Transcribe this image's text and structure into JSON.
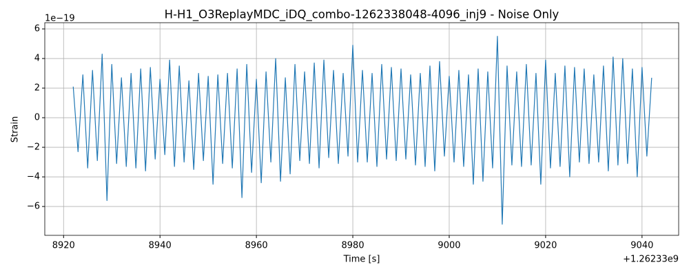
{
  "chart_data": {
    "type": "line",
    "title": "H-H1_O3ReplayMDC_iDQ_combo-1262338048-4096_inj9 - Noise Only",
    "xlabel": "Time [s]",
    "ylabel": "Strain",
    "x_offset_label": "+1.26233e9",
    "y_offset_label": "1e−19",
    "color": "#1f77b4",
    "grid": true,
    "xlim": [
      8916.1,
      9047.6
    ],
    "ylim": [
      -7.95,
      6.42
    ],
    "xticks": [
      8920,
      8940,
      8960,
      8980,
      9000,
      9020,
      9040
    ],
    "yticks": [
      {
        "value": -6,
        "label": "−6"
      },
      {
        "value": -4,
        "label": "−4"
      },
      {
        "value": -2,
        "label": "−2"
      },
      0,
      2,
      4,
      6
    ],
    "x": [
      8922,
      8923,
      8924,
      8925,
      8926,
      8927,
      8928,
      8929,
      8930,
      8931,
      8932,
      8933,
      8934,
      8935,
      8936,
      8937,
      8938,
      8939,
      8940,
      8941,
      8942,
      8943,
      8944,
      8945,
      8946,
      8947,
      8948,
      8949,
      8950,
      8951,
      8952,
      8953,
      8954,
      8955,
      8956,
      8957,
      8958,
      8959,
      8960,
      8961,
      8962,
      8963,
      8964,
      8965,
      8966,
      8967,
      8968,
      8969,
      8970,
      8971,
      8972,
      8973,
      8974,
      8975,
      8976,
      8977,
      8978,
      8979,
      8980,
      8981,
      8982,
      8983,
      8984,
      8985,
      8986,
      8987,
      8988,
      8989,
      8990,
      8991,
      8992,
      8993,
      8994,
      8995,
      8996,
      8997,
      8998,
      8999,
      9000,
      9001,
      9002,
      9003,
      9004,
      9005,
      9006,
      9007,
      9008,
      9009,
      9010,
      9011,
      9012,
      9013,
      9014,
      9015,
      9016,
      9017,
      9018,
      9019,
      9020,
      9021,
      9022,
      9023,
      9024,
      9025,
      9026,
      9027,
      9028,
      9029,
      9030,
      9031,
      9032,
      9033,
      9034,
      9035,
      9036,
      9037,
      9038,
      9039,
      9040,
      9041,
      9042
    ],
    "values": [
      2.1,
      -2.3,
      2.9,
      -3.4,
      3.2,
      -2.9,
      4.3,
      -5.6,
      3.6,
      -3.1,
      2.7,
      -3.3,
      3.0,
      -3.4,
      3.3,
      -3.6,
      3.4,
      -2.8,
      2.6,
      -2.5,
      3.9,
      -3.3,
      3.5,
      -3.0,
      2.5,
      -3.5,
      3.0,
      -2.9,
      2.8,
      -4.5,
      2.9,
      -3.1,
      3.0,
      -3.4,
      3.3,
      -5.4,
      3.6,
      -3.7,
      2.6,
      -4.4,
      3.1,
      -3.0,
      4.0,
      -4.3,
      2.7,
      -3.8,
      3.6,
      -2.9,
      3.1,
      -3.1,
      3.7,
      -3.4,
      3.9,
      -2.7,
      3.2,
      -3.1,
      3.0,
      -2.6,
      4.9,
      -3.0,
      3.2,
      -3.0,
      3.0,
      -3.3,
      3.6,
      -2.8,
      3.4,
      -2.9,
      3.3,
      -2.8,
      2.9,
      -3.2,
      3.0,
      -3.3,
      3.5,
      -3.6,
      3.8,
      -2.6,
      2.8,
      -3.0,
      3.2,
      -3.3,
      2.9,
      -4.5,
      3.3,
      -4.3,
      3.1,
      -3.4,
      5.5,
      -7.2,
      3.5,
      -3.2,
      3.1,
      -3.3,
      3.6,
      -3.2,
      3.0,
      -4.5,
      3.9,
      -3.4,
      3.0,
      -3.3,
      3.5,
      -4.0,
      3.4,
      -3.0,
      3.3,
      -3.1,
      2.9,
      -3.0,
      3.5,
      -3.6,
      4.1,
      -3.2,
      4.0,
      -3.1,
      3.3,
      -4.0,
      3.4,
      -2.6,
      2.7
    ]
  }
}
